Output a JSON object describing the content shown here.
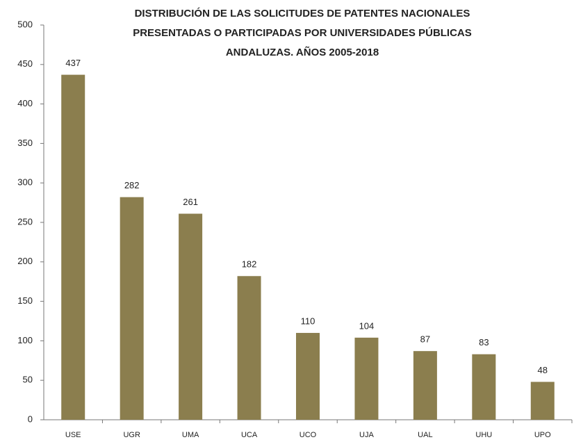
{
  "chart_data": {
    "type": "bar",
    "title": [
      "DISTRIBUCIÓN DE LAS SOLICITUDES  DE  PATENTES NACIONALES",
      "PRESENTADAS O PARTICIPADAS POR UNIVERSIDADES PÚBLICAS",
      "ANDALUZAS. AÑOS 2005-2018"
    ],
    "categories": [
      "USE",
      "UGR",
      "UMA",
      "UCA",
      "UCO",
      "UJA",
      "UAL",
      "UHU",
      "UPO"
    ],
    "values": [
      437,
      282,
      261,
      182,
      110,
      104,
      87,
      83,
      48
    ],
    "color": "#8b7e4e",
    "ylim": [
      0,
      500
    ],
    "yticks": [
      0,
      50,
      100,
      150,
      200,
      250,
      300,
      350,
      400,
      450,
      500
    ],
    "grid": false
  }
}
